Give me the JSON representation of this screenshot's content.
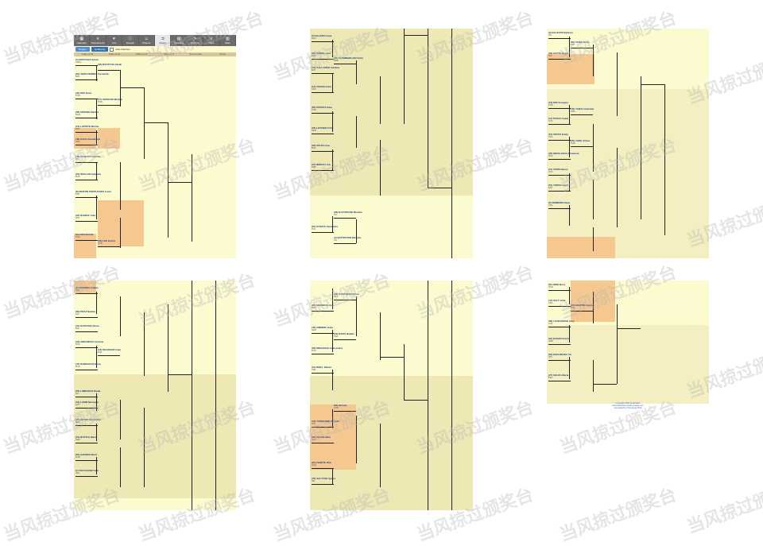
{
  "toolbar": {
    "items": [
      {
        "label": "Calendar",
        "icon": "calendar-icon"
      },
      {
        "label": "Tournaments",
        "icon": "trophy-icon"
      },
      {
        "label": "Live",
        "icon": "heart-icon"
      },
      {
        "label": "Results",
        "icon": "info-icon"
      },
      {
        "label": "Players",
        "icon": "person-icon"
      },
      {
        "label": "Draws",
        "icon": "bracket-icon"
      },
      {
        "label": "Schedule",
        "icon": "grid-icon"
      },
      {
        "label": "Ranking",
        "icon": "pen-icon"
      },
      {
        "label": "Titles",
        "icon": "trophy-icon"
      },
      {
        "label": "Stats",
        "icon": "bars-icon"
      }
    ]
  },
  "subbar": {
    "btn1": "Singles",
    "btn2": "Qualifying",
    "check_label": "Hide Matches"
  },
  "rounds": [
    "Table of 64",
    "Table of 32",
    "Table of 16",
    "Table of 8",
    "Semi Finals",
    "Finals"
  ],
  "panels": {
    "p1": {
      "entries": [
        {
          "name": "(1) BOUTCHA Sarah",
          "ctry": "LEBra"
        },
        {
          "name": "(64) VERGUERRES Fernanda",
          "ctry": "BRA"
        },
        {
          "name": "(33) BOUTCHA Sarah",
          "ctry": ""
        },
        {
          "name": "(32) KIM Jieun",
          "ctry": "KOR"
        },
        {
          "name": "(17) OROGOD Martha",
          "ctry": "POR"
        },
        {
          "name": "(56) ODIONG Martha",
          "ctry": "NGR"
        },
        {
          "name": "(16) LAPISTE Marisa",
          "ctry": "ESP"
        },
        {
          "name": "(49) GALE Anastasiya",
          "ctry": "UKR"
        },
        {
          "name": "(48) PUSETTI Ludmila",
          "ctry": "ITA"
        },
        {
          "name": "(24) DEGLAN Gabriela",
          "ctry": "RUS"
        },
        {
          "name": "(8) MARTIN PORTUGUES Lucia",
          "ctry": "ESP"
        },
        {
          "name": "(25) RAMOS Yuka",
          "ctry": "JPN"
        },
        {
          "name": "(9) LEES Eunha",
          "ctry": "KOR"
        },
        {
          "name": "(40) LEE Eunha",
          "ctry": "KOR"
        }
      ]
    },
    "p2": {
      "entries": [
        {
          "name": "(5) BALZER Ioana",
          "ctry": "ROU"
        },
        {
          "name": "(60) GIEBEL Ana",
          "ctry": "ESP"
        },
        {
          "name": "(21) CHAMBERLAIN Sofia",
          "ctry": "GBR"
        },
        {
          "name": "(44) GALLARDO Adriana",
          "ctry": "ESP"
        },
        {
          "name": "(13) ZORAN Julia",
          "ctry": "CRO"
        },
        {
          "name": "(52) PORTAS Sara",
          "ctry": "POR"
        },
        {
          "name": "(29) LEITNER Fritz",
          "ctry": "GER"
        },
        {
          "name": "(36) SOUZA Ana",
          "ctry": "BRA"
        },
        {
          "name": "(37) BRESA Lina",
          "ctry": "SRB"
        },
        {
          "name": "(28) BATTISTONI Michela",
          "ctry": "ITA"
        },
        {
          "name": "(61) KUNCIA Alexandra",
          "ctry": "POL"
        },
        {
          "name": "(4) BATTISTONI Michela",
          "ctry": "ITA"
        }
      ]
    },
    "p3": {
      "entries": [
        {
          "name": "(3) BALZIANI Barbara",
          "ctry": "ITA"
        },
        {
          "name": "(62) VIVES Nuria",
          "ctry": "ESP"
        },
        {
          "name": "(30) SATTE Bugar",
          "ctry": "SUI"
        },
        {
          "name": "(19) KIM Jeongmi",
          "ctry": "KOR"
        },
        {
          "name": "(46) YANAZ Gabriela",
          "ctry": "ARG"
        },
        {
          "name": "(14) PAVAS Isabel",
          "ctry": "COL"
        },
        {
          "name": "(51) SPOZZ Emily",
          "ctry": "USA"
        },
        {
          "name": "(35) JANG Sohee",
          "ctry": "KOR"
        },
        {
          "name": "(26) NIKOLAEVA Anastasia",
          "ctry": "RUS"
        },
        {
          "name": "(11) CORN Sanny",
          "ctry": "USA"
        },
        {
          "name": "(54) TORRA Carla",
          "ctry": "ESP"
        },
        {
          "name": "(6) SIMMONS Dana",
          "ctry": "USA"
        }
      ]
    },
    "p4": {
      "entries": [
        {
          "name": "(2) ANDRIEU Sophie",
          "ctry": "FRA"
        },
        {
          "name": "(63) PRAZ Nadine",
          "ctry": "SUI"
        },
        {
          "name": "(31) KOSTOVA Elena",
          "ctry": "BUL"
        },
        {
          "name": "(18) ABRAMOVA Victoria",
          "ctry": "RUS"
        },
        {
          "name": "(47) KOMAROVA Ilona",
          "ctry": "RUS"
        },
        {
          "name": "(15) DEGRASO Iman",
          "ctry": "ESP"
        },
        {
          "name": "(50) LIMBOSCO Nadia",
          "ctry": "ITA"
        },
        {
          "name": "(34) LAMM Michaela",
          "ctry": "AUT"
        },
        {
          "name": "(27) REYES Alexandra",
          "ctry": "MEX"
        },
        {
          "name": "(10) ROTTLE Maria",
          "ctry": "GER"
        },
        {
          "name": "(55) HANSEN Marit",
          "ctry": "NOR"
        },
        {
          "name": "(7) TAKAHASHI Saki",
          "ctry": "JPN"
        }
      ]
    },
    "p5": {
      "entries": [
        {
          "name": "(39) KARASEVA Elena",
          "ctry": "RUS"
        },
        {
          "name": "(26) MENDOZA Ana",
          "ctry": "MEX"
        },
        {
          "name": "(42) ZIMMER Linda",
          "ctry": "GER"
        },
        {
          "name": "(23) DAVIS Natalie",
          "ctry": "USA"
        },
        {
          "name": "(58) MINAKOVA Aleksandra",
          "ctry": "RUS"
        },
        {
          "name": "(12) BRILL Nikola",
          "ctry": "CZE"
        },
        {
          "name": "(53) OH Hoi",
          "ctry": "KOR"
        },
        {
          "name": "(44) YONEZAWA Natsuki",
          "ctry": "JPN"
        },
        {
          "name": "(57) ZHANG Wen",
          "ctry": "CHN"
        },
        {
          "name": "(20) FEKETE Rita",
          "ctry": "HUN"
        },
        {
          "name": "(45) SALTUSH Ayelet",
          "ctry": "ISR"
        }
      ]
    },
    "p6": {
      "entries": [
        {
          "name": "(8) LEINE Nora",
          "ctry": "NOR"
        },
        {
          "name": "(41) SALT Julia",
          "ctry": "USA"
        },
        {
          "name": "(24) MARTIN Helene",
          "ctry": "FRA"
        },
        {
          "name": "(38) LOVEGROVE Amy",
          "ctry": "AUS"
        },
        {
          "name": "(22) BAKER Emma",
          "ctry": "GBR"
        },
        {
          "name": "(59) NAKAMURA Yui",
          "ctry": "JPN"
        },
        {
          "name": "(27) SOUZA Maria",
          "ctry": "BRA"
        }
      ],
      "footer": [
        "Copyright 2024 Federation",
        "www.federation-draws-results.com",
        "Generated by TournamentSoft"
      ]
    }
  },
  "watermark": "当风掠过颁奖台"
}
